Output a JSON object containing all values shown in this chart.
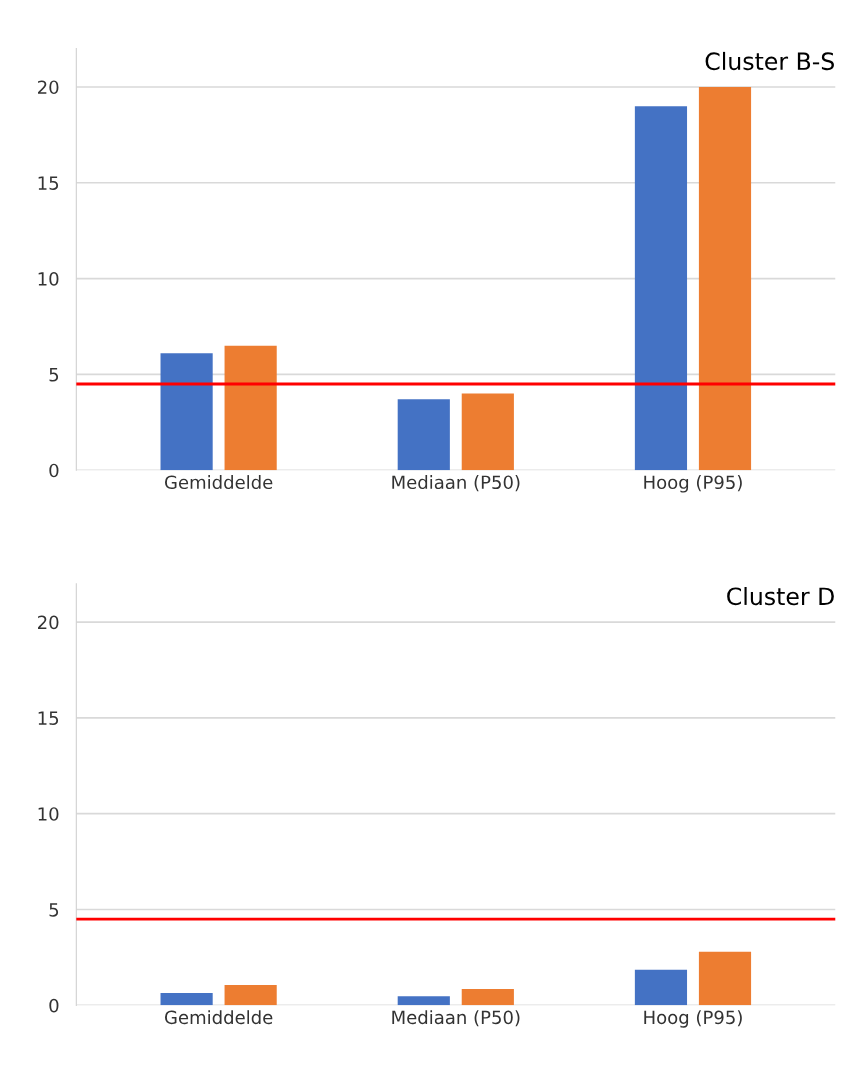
{
  "chart_data": [
    {
      "type": "bar",
      "title": "Cluster B-S",
      "categories": [
        "Gemiddelde",
        "Mediaan (P50)",
        "Hoog (P95)"
      ],
      "series": [
        {
          "color": "#4472c4",
          "values": [
            6.1,
            3.7,
            19
          ]
        },
        {
          "color": "#ed7d31",
          "values": [
            6.5,
            4.0,
            20
          ]
        }
      ],
      "ylim": [
        0,
        22
      ],
      "yticks": [
        0,
        5,
        10,
        15,
        20
      ],
      "grid": "y",
      "ref_lines": [
        {
          "axis": "y",
          "value": 4.5,
          "color": "#ff0000"
        }
      ]
    },
    {
      "type": "bar",
      "title": "Cluster D",
      "categories": [
        "Gemiddelde",
        "Mediaan (P50)",
        "Hoog (P95)"
      ],
      "series": [
        {
          "color": "#4472c4",
          "values": [
            0.64,
            0.48,
            1.86
          ]
        },
        {
          "color": "#ed7d31",
          "values": [
            1.06,
            0.85,
            2.8
          ]
        }
      ],
      "ylim": [
        0,
        22
      ],
      "yticks": [
        0,
        5,
        10,
        15,
        20
      ],
      "grid": "y",
      "ref_lines": [
        {
          "axis": "y",
          "value": 4.5,
          "color": "#ff0000"
        }
      ]
    }
  ]
}
